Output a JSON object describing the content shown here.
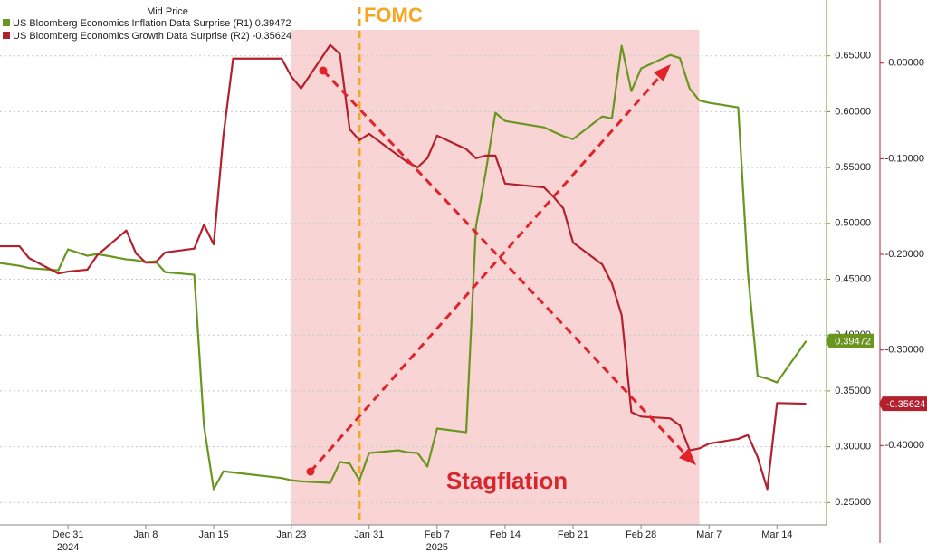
{
  "chart_data": {
    "type": "line",
    "title": "Mid Price",
    "annotations": {
      "vline_label": "FOMC",
      "shade_label": "Stagflation"
    },
    "vline": "2025-01-30",
    "shade": [
      "2025-01-23",
      "2025-03-06"
    ],
    "year_labels": [
      {
        "value": "2024-12-31",
        "label": "2024"
      },
      {
        "value": "2025-02-07",
        "label": "2025"
      }
    ],
    "x": [
      "2024-12-24",
      "2024-12-26",
      "2024-12-27",
      "2024-12-30",
      "2024-12-31",
      "2025-01-02",
      "2025-01-03",
      "2025-01-06",
      "2025-01-07",
      "2025-01-08",
      "2025-01-09",
      "2025-01-10",
      "2025-01-13",
      "2025-01-14",
      "2025-01-15",
      "2025-01-16",
      "2025-01-17",
      "2025-01-21",
      "2025-01-22",
      "2025-01-23",
      "2025-01-24",
      "2025-01-27",
      "2025-01-28",
      "2025-01-29",
      "2025-01-30",
      "2025-01-31",
      "2025-02-03",
      "2025-02-04",
      "2025-02-05",
      "2025-02-06",
      "2025-02-07",
      "2025-02-10",
      "2025-02-11",
      "2025-02-12",
      "2025-02-13",
      "2025-02-14",
      "2025-02-18",
      "2025-02-19",
      "2025-02-20",
      "2025-02-21",
      "2025-02-24",
      "2025-02-25",
      "2025-02-26",
      "2025-02-27",
      "2025-02-28",
      "2025-03-03",
      "2025-03-04",
      "2025-03-05",
      "2025-03-06",
      "2025-03-07",
      "2025-03-10",
      "2025-03-11",
      "2025-03-12",
      "2025-03-13",
      "2025-03-14",
      "2025-03-17"
    ],
    "series": [
      {
        "name": "US Bloomberg Economics Inflation Data Surprise (R1)",
        "color": "#6a961f",
        "axis": "y",
        "values": [
          0.4645,
          0.462,
          0.46,
          0.458,
          0.4767,
          0.471,
          0.4726,
          0.4678,
          0.467,
          0.4653,
          0.466,
          0.4564,
          0.454,
          0.3187,
          0.262,
          0.278,
          0.277,
          0.273,
          0.272,
          0.27,
          0.269,
          0.2677,
          0.2863,
          0.285,
          0.27,
          0.2944,
          0.2968,
          0.295,
          0.2944,
          0.2823,
          0.3163,
          0.313,
          0.497,
          0.5455,
          0.599,
          0.5917,
          0.586,
          0.582,
          0.578,
          0.5755,
          0.5957,
          0.594,
          0.659,
          0.6184,
          0.6387,
          0.6508,
          0.648,
          0.6208,
          0.61,
          0.608,
          0.6038,
          0.456,
          0.3633,
          0.361,
          0.3576,
          0.39472
        ]
      },
      {
        "name": "US Bloomberg Economics Growth Data Surprise (R2)",
        "color": "#b3202e",
        "axis": "y2",
        "values": [
          -0.1915,
          -0.1915,
          -0.204,
          -0.22,
          -0.218,
          -0.216,
          -0.201,
          -0.175,
          -0.199,
          -0.2086,
          -0.2086,
          -0.198,
          -0.194,
          -0.169,
          -0.1896,
          -0.0758,
          0.0047,
          0.0047,
          0.0047,
          -0.0142,
          -0.0265,
          0.019,
          0.0095,
          -0.0692,
          -0.0806,
          -0.074,
          -0.0967,
          -0.104,
          -0.109,
          -0.0995,
          -0.0758,
          -0.09,
          -0.0995,
          -0.0967,
          -0.0967,
          -0.126,
          -0.13,
          -0.14,
          -0.152,
          -0.1877,
          -0.2105,
          -0.2304,
          -0.2635,
          -0.365,
          -0.3697,
          -0.3716,
          -0.379,
          -0.405,
          -0.403,
          -0.398,
          -0.393,
          -0.389,
          -0.412,
          -0.4456,
          -0.3555,
          -0.35624
        ]
      }
    ],
    "xlim": [
      "2024-12-24",
      "2025-03-19"
    ],
    "xticks": [
      {
        "value": "2024-12-31",
        "label": "Dec 31"
      },
      {
        "value": "2025-01-08",
        "label": "Jan 8"
      },
      {
        "value": "2025-01-15",
        "label": "Jan 15"
      },
      {
        "value": "2025-01-23",
        "label": "Jan 23"
      },
      {
        "value": "2025-01-31",
        "label": "Jan 31"
      },
      {
        "value": "2025-02-07",
        "label": "Feb 7"
      },
      {
        "value": "2025-02-14",
        "label": "Feb 14"
      },
      {
        "value": "2025-02-21",
        "label": "Feb 21"
      },
      {
        "value": "2025-02-28",
        "label": "Feb 28"
      },
      {
        "value": "2025-03-07",
        "label": "Mar 7"
      },
      {
        "value": "2025-03-14",
        "label": "Mar 14"
      }
    ],
    "ylim": [
      0.23,
      0.7
    ],
    "yticks": [
      {
        "value": 0.25,
        "label": "0.25000"
      },
      {
        "value": 0.3,
        "label": "0.30000"
      },
      {
        "value": 0.35,
        "label": "0.35000"
      },
      {
        "value": 0.4,
        "label": "0.40000"
      },
      {
        "value": 0.45,
        "label": "0.45000"
      },
      {
        "value": 0.5,
        "label": "0.50000"
      },
      {
        "value": 0.55,
        "label": "0.55000"
      },
      {
        "value": 0.6,
        "label": "0.60000"
      },
      {
        "value": 0.65,
        "label": "0.65000"
      }
    ],
    "y2lim": [
      -0.483,
      0.066
    ],
    "y2ticks": [
      {
        "value": 0,
        "label": "0.00000"
      },
      {
        "value": -0.1,
        "label": "-0.10000"
      },
      {
        "value": -0.2,
        "label": "-0.20000"
      },
      {
        "value": -0.3,
        "label": "-0.30000"
      },
      {
        "value": -0.4,
        "label": "-0.40000"
      }
    ],
    "grid": true
  }
}
